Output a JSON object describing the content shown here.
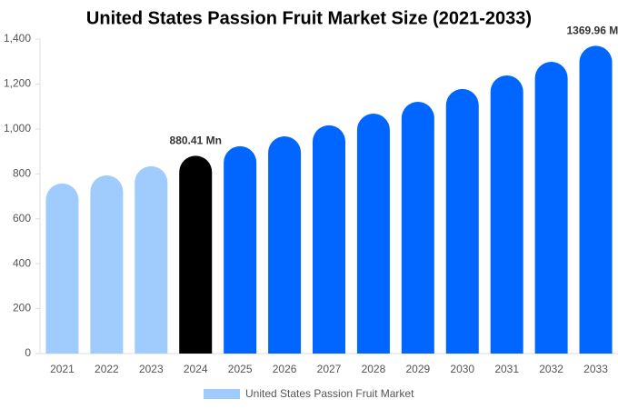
{
  "chart_data": {
    "type": "bar",
    "title": "United States Passion Fruit Market Size (2021-2033)",
    "categories": [
      "2021",
      "2022",
      "2023",
      "2024",
      "2025",
      "2026",
      "2027",
      "2028",
      "2029",
      "2030",
      "2031",
      "2032",
      "2033"
    ],
    "series": [
      {
        "name": "United States Passion Fruit Market",
        "color": "#a0cbfd",
        "values": [
          757,
          793,
          834,
          880.41,
          923,
          967,
          1016,
          1068,
          1121,
          1178,
          1238,
          1299,
          1369.96
        ],
        "value_labels": [
          null,
          null,
          null,
          "880.41 Mn",
          null,
          null,
          null,
          null,
          null,
          null,
          null,
          null,
          "1369.96 Mn"
        ],
        "bar_colors": [
          "#a0cbfd",
          "#a0cbfd",
          "#a0cbfd",
          "#000000",
          "#0066ff",
          "#0066ff",
          "#0066ff",
          "#0066ff",
          "#0066ff",
          "#0066ff",
          "#0066ff",
          "#0066ff",
          "#0066ff"
        ]
      }
    ],
    "ylim": [
      0,
      1400
    ],
    "yticks": [
      0,
      200,
      400,
      600,
      800,
      {
        "value": 1000,
        "label": "1,000"
      },
      {
        "value": 1200,
        "label": "1,200"
      },
      {
        "value": 1400,
        "label": "1,400"
      }
    ],
    "grid": false
  }
}
